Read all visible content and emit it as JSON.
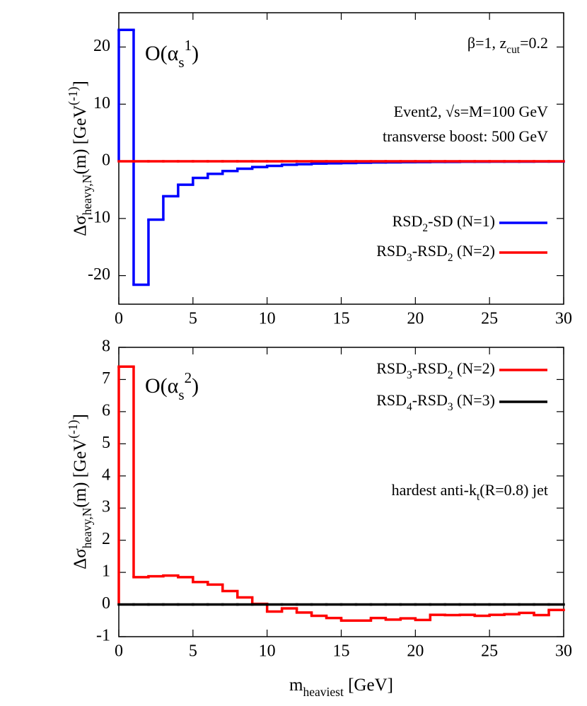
{
  "chart_data": [
    {
      "type": "histogram",
      "ylabel": [
        "Δσ",
        "heavy,N",
        "(m) [GeV",
        "(-1)",
        "]"
      ],
      "annotations": [
        [
          "O(α",
          "s",
          "1",
          ")"
        ],
        [
          "β=1, z",
          "cut",
          "=0.2"
        ],
        [
          "Event2, √s=M=100 GeV"
        ],
        [
          "transverse boost: 500 GeV"
        ]
      ],
      "bins": [
        0,
        1,
        2,
        3,
        4,
        5,
        6,
        7,
        8,
        9,
        10,
        11,
        12,
        13,
        14,
        15,
        16,
        17,
        18,
        19,
        20,
        21,
        22,
        23,
        24,
        25,
        26,
        27,
        28,
        29,
        30
      ],
      "series": [
        {
          "name": [
            "RSD",
            "2",
            "-SD (N=1)"
          ],
          "color": "#0000ff",
          "values": [
            23,
            -21.6,
            -10.2,
            -6.1,
            -4.1,
            -2.9,
            -2.2,
            -1.7,
            -1.3,
            -1.0,
            -0.8,
            -0.6,
            -0.5,
            -0.4,
            -0.35,
            -0.3,
            -0.25,
            -0.2,
            -0.18,
            -0.15,
            -0.13,
            -0.11,
            -0.1,
            -0.08,
            -0.07,
            -0.06,
            -0.05,
            -0.05,
            -0.04,
            -0.04
          ]
        },
        {
          "name": [
            "RSD",
            "3",
            "-RSD",
            "2",
            " (N=2)"
          ],
          "color": "#ff0000",
          "values": [
            0,
            0,
            0,
            0,
            0,
            0,
            0,
            0,
            0,
            0,
            0,
            0,
            0,
            0,
            0,
            0,
            0,
            0,
            0,
            0,
            0,
            0,
            0,
            0,
            0,
            0,
            0,
            0,
            0,
            0
          ]
        }
      ],
      "xlim": [
        0,
        30
      ],
      "xticks": [
        0,
        5,
        10,
        15,
        20,
        25,
        30
      ],
      "ylim": [
        -25,
        26
      ],
      "yticks": [
        -20,
        -10,
        0,
        10,
        20
      ],
      "legend": "lower right"
    },
    {
      "type": "histogram",
      "xlabel": [
        "m",
        "heaviest",
        " [GeV]"
      ],
      "ylabel": [
        "Δσ",
        "heavy,N",
        "(m) [GeV",
        "(-1)",
        "]"
      ],
      "annotations": [
        [
          "O(α",
          "s",
          "2",
          ")"
        ],
        [
          "hardest anti-k",
          "t",
          "(R=0.8) jet"
        ]
      ],
      "bins": [
        0,
        1,
        2,
        3,
        4,
        5,
        6,
        7,
        8,
        9,
        10,
        11,
        12,
        13,
        14,
        15,
        16,
        17,
        18,
        19,
        20,
        21,
        22,
        23,
        24,
        25,
        26,
        27,
        28,
        29,
        30
      ],
      "series": [
        {
          "name": [
            "RSD",
            "3",
            "-RSD",
            "2",
            " (N=2)"
          ],
          "color": "#ff0000",
          "values": [
            7.4,
            0.85,
            0.88,
            0.9,
            0.85,
            0.7,
            0.62,
            0.42,
            0.22,
            0.02,
            -0.22,
            -0.12,
            -0.25,
            -0.35,
            -0.42,
            -0.5,
            -0.5,
            -0.42,
            -0.47,
            -0.43,
            -0.48,
            -0.32,
            -0.33,
            -0.32,
            -0.35,
            -0.32,
            -0.3,
            -0.26,
            -0.33,
            -0.17
          ]
        },
        {
          "name": [
            "RSD",
            "4",
            "-RSD",
            "3",
            " (N=3)"
          ],
          "color": "#000000",
          "values": [
            0,
            0,
            0,
            0,
            0,
            0,
            0,
            0,
            0,
            0,
            0,
            0,
            0,
            0,
            0,
            0,
            0,
            0,
            0,
            0,
            0,
            0,
            0,
            0,
            0,
            0,
            0,
            0,
            0,
            0
          ]
        }
      ],
      "xlim": [
        0,
        30
      ],
      "xticks": [
        0,
        5,
        10,
        15,
        20,
        25,
        30
      ],
      "ylim": [
        -1,
        8
      ],
      "yticks": [
        -1,
        0,
        1,
        2,
        3,
        4,
        5,
        6,
        7,
        8
      ],
      "legend": "upper right"
    }
  ]
}
